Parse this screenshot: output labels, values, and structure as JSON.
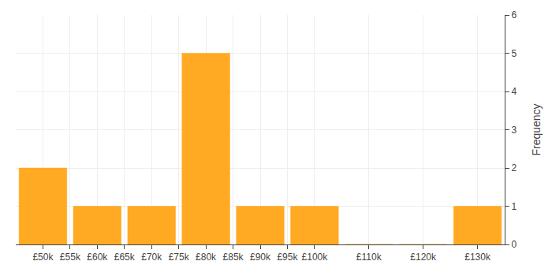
{
  "chart_data": {
    "type": "histogram",
    "bins": [
      45000,
      55000,
      65000,
      75000,
      85000,
      95000,
      105000,
      115000,
      125000,
      135000
    ],
    "values": [
      2,
      1,
      1,
      5,
      1,
      1,
      0,
      0,
      1
    ],
    "color": "#FFAA22",
    "y_label": "Frequency",
    "ylim": [
      0,
      6
    ],
    "yticks": [
      0,
      1,
      2,
      3,
      4,
      5,
      6
    ],
    "xlim": [
      45000,
      135000
    ],
    "xticks": [
      {
        "value": 55000,
        "label": "£55k"
      },
      {
        "value": 65000,
        "label": "£65k"
      },
      {
        "value": 75000,
        "label": "£75k"
      },
      {
        "value": 85000,
        "label": "£85k"
      },
      {
        "value": 95000,
        "label": "£95k"
      },
      {
        "value": 110000,
        "label": "£110k"
      },
      {
        "value": 130000,
        "label": "£130k"
      },
      {
        "value": 50000,
        "label": "£50k"
      },
      {
        "value": 60000,
        "label": "£60k"
      },
      {
        "value": 70000,
        "label": "£70k"
      },
      {
        "value": 80000,
        "label": "£80k"
      },
      {
        "value": 90000,
        "label": "£90k"
      },
      {
        "value": 100000,
        "label": "£100k"
      },
      {
        "value": 120000,
        "label": "£120k"
      }
    ],
    "grid": true
  }
}
